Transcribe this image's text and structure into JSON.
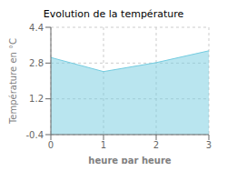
{
  "chart_data": {
    "type": "area",
    "title": "Evolution de la température",
    "xlabel": "heure par heure",
    "ylabel": "Température en °C",
    "x": [
      0,
      1,
      2,
      3
    ],
    "values": [
      3.05,
      2.42,
      2.82,
      3.35
    ],
    "xlim": [
      0,
      3
    ],
    "ylim": [
      -0.4,
      4.4
    ],
    "xticks": [
      0,
      1,
      2,
      3
    ],
    "yticks": [
      -0.4,
      1.2,
      2.8,
      4.4
    ],
    "color": "#74cce0",
    "grid": true
  }
}
